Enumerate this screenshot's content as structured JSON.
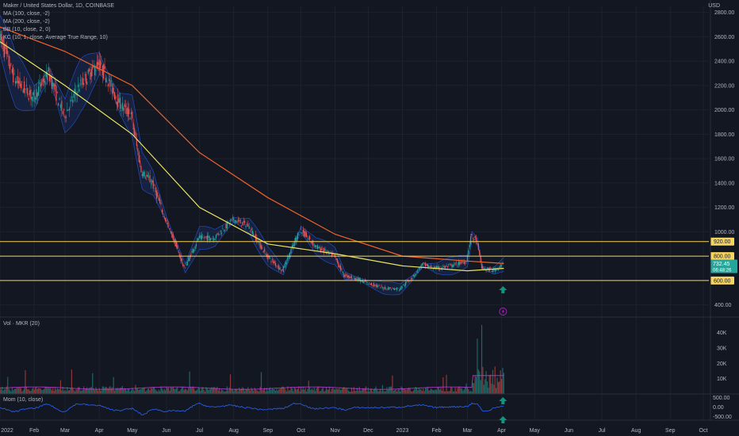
{
  "chart_data": {
    "type": "line",
    "title": "Maker / United States Dollar, 1D, COINBASE",
    "currency": "USD",
    "indicators": [
      "MA (100, close, -2)",
      "MA (200, close, -2)",
      "BB (10, close, 2, 0)",
      "KC (10, 1, close, Average True Range, 10)"
    ],
    "price_axis": {
      "ticks": [
        "2800.00",
        "2600.00",
        "2400.00",
        "2200.00",
        "2000.00",
        "1800.00",
        "1600.00",
        "1400.00",
        "1200.00",
        "1000.00",
        "400.00"
      ],
      "ylim": [
        300,
        2850
      ]
    },
    "x_ticks": [
      "2022",
      "Feb",
      "Mar",
      "Apr",
      "May",
      "Jun",
      "Jul",
      "Aug",
      "Sep",
      "Oct",
      "Nov",
      "Dec",
      "2023",
      "Feb",
      "Mar",
      "Apr",
      "May",
      "Jun",
      "Jul",
      "Aug",
      "Sep",
      "Oct"
    ],
    "horizontal_levels": [
      {
        "value": 920,
        "label": "920.00"
      },
      {
        "value": 800,
        "label": "800.00"
      },
      {
        "value": 600,
        "label": "600.00"
      }
    ],
    "last_price": {
      "value": 732.45,
      "label": "732.45",
      "countdown": "06:48:26"
    },
    "series": [
      {
        "name": "MKR",
        "x": [
          "2022-01-01",
          "2022-01-15",
          "2022-02-01",
          "2022-02-15",
          "2022-03-01",
          "2022-03-15",
          "2022-04-01",
          "2022-04-08",
          "2022-04-20",
          "2022-05-01",
          "2022-05-10",
          "2022-05-20",
          "2022-06-01",
          "2022-06-10",
          "2022-06-18",
          "2022-07-01",
          "2022-07-15",
          "2022-08-01",
          "2022-08-15",
          "2022-09-01",
          "2022-09-15",
          "2022-10-01",
          "2022-10-15",
          "2022-11-01",
          "2022-11-10",
          "2022-11-20",
          "2022-12-01",
          "2022-12-15",
          "2022-12-30",
          "2023-01-10",
          "2023-01-20",
          "2023-02-01",
          "2023-02-15",
          "2023-03-01",
          "2023-03-05",
          "2023-03-10",
          "2023-03-15",
          "2023-03-25",
          "2023-04-03"
        ],
        "values": [
          2620,
          2250,
          2100,
          2300,
          1950,
          2200,
          2380,
          2280,
          2050,
          1950,
          1500,
          1400,
          1100,
          900,
          700,
          950,
          950,
          1100,
          1050,
          800,
          680,
          1020,
          880,
          800,
          640,
          620,
          580,
          540,
          530,
          620,
          730,
          700,
          720,
          760,
          960,
          930,
          700,
          680,
          732
        ]
      },
      {
        "name": "MA (100, close, -2)",
        "x": [
          "2022-01-01",
          "2022-03-01",
          "2022-05-01",
          "2022-07-01",
          "2022-09-01",
          "2022-11-01",
          "2023-01-01",
          "2023-03-01",
          "2023-04-03"
        ],
        "values": [
          2560,
          2200,
          1800,
          1200,
          900,
          820,
          720,
          680,
          700
        ]
      },
      {
        "name": "MA (200, close, -2)",
        "x": [
          "2022-01-01",
          "2022-03-01",
          "2022-05-01",
          "2022-07-01",
          "2022-09-01",
          "2022-11-01",
          "2023-01-01",
          "2023-03-01",
          "2023-04-03"
        ],
        "values": [
          2680,
          2480,
          2200,
          1650,
          1280,
          980,
          800,
          760,
          740
        ]
      }
    ],
    "volume": {
      "label": "Vol · MKR (20)",
      "ticks": [
        "40K",
        "30K",
        "20K",
        "10K"
      ],
      "ylim": [
        0,
        48000
      ],
      "peak": 45000
    },
    "momentum": {
      "label": "Mom (10, close)",
      "ticks": [
        "500.00",
        "0.00",
        "-500.00"
      ],
      "ylim": [
        -700,
        700
      ]
    }
  },
  "colors": {
    "background": "#131722",
    "grid": "#1e222d",
    "up": "#26a69a",
    "down": "#ef5350",
    "ma100": "#e8e463",
    "ma200": "#f0632b",
    "bands": "#2962ff",
    "level": "#f9d45b",
    "momentum": "#2962ff",
    "volume_ma": "#b83bd6",
    "signal": "#089981",
    "flash": "#9c27b0"
  }
}
